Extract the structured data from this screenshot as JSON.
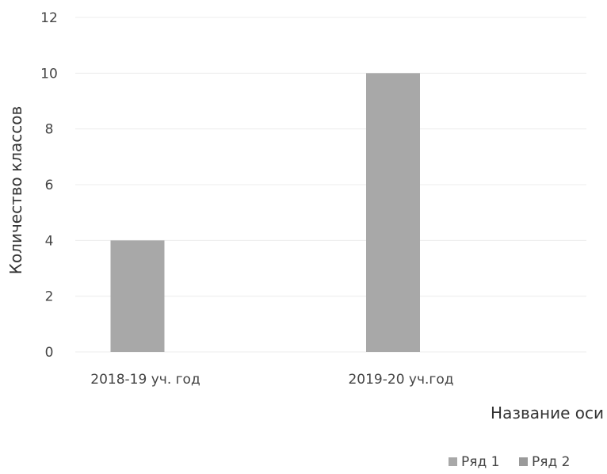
{
  "chart_data": {
    "type": "bar",
    "categories": [
      "2018-19 уч. год",
      "2019-20 уч.год"
    ],
    "series": [
      {
        "name": "Ряд 1",
        "values": [
          4,
          10
        ],
        "color": "#a8a8a8"
      },
      {
        "name": "Ряд 2",
        "values": [
          null,
          null
        ],
        "color": "#9a9a9a"
      }
    ],
    "ylabel": "Количество классов",
    "xlabel": "Название оси",
    "ylim": [
      0,
      12
    ],
    "yticks": [
      0,
      2,
      4,
      6,
      8,
      10,
      12
    ],
    "grid": true,
    "legend_position": "bottom-right"
  }
}
